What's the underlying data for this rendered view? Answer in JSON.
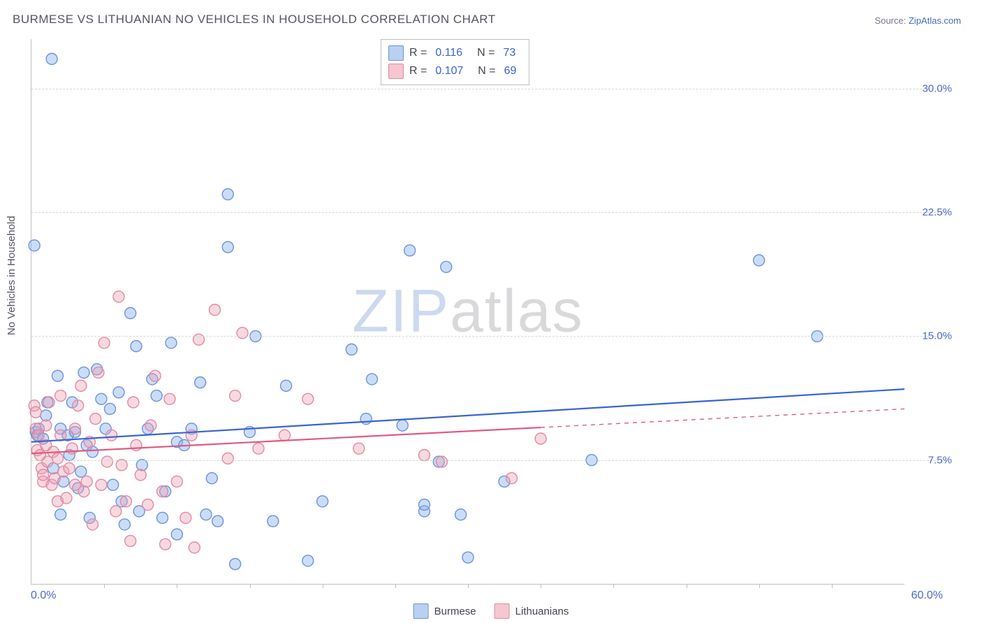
{
  "title": "BURMESE VS LITHUANIAN NO VEHICLES IN HOUSEHOLD CORRELATION CHART",
  "source_label": "Source:",
  "source_name": "ZipAtlas.com",
  "ylabel": "No Vehicles in Household",
  "watermark_a": "ZIP",
  "watermark_b": "atlas",
  "chart": {
    "type": "scatter",
    "background_color": "#ffffff",
    "grid_color": "#d8d8d8",
    "axis_color": "#bfbfbf",
    "tick_label_color": "#4a6ac8",
    "xlim": [
      0,
      60
    ],
    "ylim": [
      0,
      33
    ],
    "x_axis_label_min": "0.0%",
    "x_axis_label_max": "60.0%",
    "y_gridlines": [
      7.5,
      15.0,
      22.5,
      30.0
    ],
    "y_grid_labels": [
      "7.5%",
      "15.0%",
      "22.5%",
      "30.0%"
    ],
    "x_ticks": [
      5,
      10,
      15,
      20,
      25,
      30,
      35,
      40,
      45,
      50,
      55
    ],
    "marker_radius": 8,
    "marker_stroke_width": 1.4,
    "trend_line_width": 2.2,
    "label_fontsize": 15,
    "title_fontsize": 17
  },
  "stats": {
    "rows": [
      {
        "swatch_fill": "#b9d0f0",
        "swatch_stroke": "#6a94dc",
        "r": "0.116",
        "n": "73"
      },
      {
        "swatch_fill": "#f5c6d1",
        "swatch_stroke": "#e28ba2",
        "r": "0.107",
        "n": "69"
      }
    ],
    "r_prefix": "R  =",
    "n_prefix": "N  ="
  },
  "series_legend": [
    {
      "swatch_fill": "#b9d0f0",
      "swatch_stroke": "#6a94dc",
      "label": "Burmese"
    },
    {
      "swatch_fill": "#f5c6d1",
      "swatch_stroke": "#e28ba2",
      "label": "Lithuanians"
    }
  ],
  "series": [
    {
      "name": "Burmese",
      "color_fill": "rgba(140,180,235,0.45)",
      "color_stroke": "#6a94dc",
      "trend_color": "#3a64d6",
      "trend": {
        "x1": 0,
        "y1": 8.6,
        "x2": 60,
        "y2": 11.8,
        "solid_until_x": 60
      },
      "points": [
        [
          0.2,
          20.5
        ],
        [
          0.3,
          9.2
        ],
        [
          0.4,
          9.0
        ],
        [
          0.5,
          9.4
        ],
        [
          0.8,
          8.8
        ],
        [
          1.0,
          10.2
        ],
        [
          1.1,
          11.0
        ],
        [
          1.4,
          31.8
        ],
        [
          1.5,
          7.0
        ],
        [
          1.8,
          12.6
        ],
        [
          2.0,
          4.2
        ],
        [
          2.0,
          9.4
        ],
        [
          2.2,
          6.2
        ],
        [
          2.5,
          9.0
        ],
        [
          2.6,
          7.8
        ],
        [
          2.8,
          11.0
        ],
        [
          3.0,
          9.2
        ],
        [
          3.2,
          5.8
        ],
        [
          3.4,
          6.8
        ],
        [
          3.6,
          12.8
        ],
        [
          3.8,
          8.4
        ],
        [
          4.0,
          4.0
        ],
        [
          4.2,
          8.0
        ],
        [
          4.5,
          13.0
        ],
        [
          4.8,
          11.2
        ],
        [
          5.1,
          9.4
        ],
        [
          5.4,
          10.6
        ],
        [
          5.6,
          6.0
        ],
        [
          6.0,
          11.6
        ],
        [
          6.2,
          5.0
        ],
        [
          6.4,
          3.6
        ],
        [
          6.8,
          16.4
        ],
        [
          7.2,
          14.4
        ],
        [
          7.4,
          4.4
        ],
        [
          7.6,
          7.2
        ],
        [
          8.0,
          9.4
        ],
        [
          8.3,
          12.4
        ],
        [
          8.6,
          11.4
        ],
        [
          9.0,
          4.0
        ],
        [
          9.2,
          5.6
        ],
        [
          9.6,
          14.6
        ],
        [
          10.0,
          8.6
        ],
        [
          10.0,
          3.0
        ],
        [
          10.5,
          8.4
        ],
        [
          11.0,
          9.4
        ],
        [
          11.6,
          12.2
        ],
        [
          12.0,
          4.2
        ],
        [
          12.4,
          6.4
        ],
        [
          12.8,
          3.8
        ],
        [
          13.5,
          20.4
        ],
        [
          13.5,
          23.6
        ],
        [
          14.0,
          1.2
        ],
        [
          15.0,
          9.2
        ],
        [
          15.4,
          15.0
        ],
        [
          16.6,
          3.8
        ],
        [
          17.5,
          12.0
        ],
        [
          19.0,
          1.4
        ],
        [
          20.0,
          5.0
        ],
        [
          22.0,
          14.2
        ],
        [
          23.0,
          10.0
        ],
        [
          23.4,
          12.4
        ],
        [
          25.5,
          9.6
        ],
        [
          26.0,
          20.2
        ],
        [
          27.0,
          4.4
        ],
        [
          27.0,
          4.8
        ],
        [
          28.0,
          7.4
        ],
        [
          28.5,
          19.2
        ],
        [
          29.5,
          4.2
        ],
        [
          30.0,
          1.6
        ],
        [
          32.5,
          6.2
        ],
        [
          38.5,
          7.5
        ],
        [
          50.0,
          19.6
        ],
        [
          54.0,
          15.0
        ]
      ]
    },
    {
      "name": "Lithuanians",
      "color_fill": "rgba(235,160,180,0.40)",
      "color_stroke": "#e28ba2",
      "trend_color": "#e05a82",
      "trend": {
        "x1": 0,
        "y1": 7.9,
        "x2": 60,
        "y2": 10.6,
        "solid_until_x": 35
      },
      "points": [
        [
          0.2,
          10.8
        ],
        [
          0.3,
          10.4
        ],
        [
          0.3,
          9.4
        ],
        [
          0.4,
          8.1
        ],
        [
          0.5,
          9.0
        ],
        [
          0.6,
          7.8
        ],
        [
          0.7,
          7.0
        ],
        [
          0.8,
          6.2
        ],
        [
          0.8,
          6.6
        ],
        [
          1.0,
          8.4
        ],
        [
          1.0,
          9.6
        ],
        [
          1.1,
          7.4
        ],
        [
          1.2,
          11.0
        ],
        [
          1.4,
          6.0
        ],
        [
          1.5,
          8.0
        ],
        [
          1.6,
          6.4
        ],
        [
          1.8,
          5.0
        ],
        [
          1.8,
          7.6
        ],
        [
          2.0,
          9.0
        ],
        [
          2.0,
          11.4
        ],
        [
          2.2,
          6.8
        ],
        [
          2.4,
          5.2
        ],
        [
          2.6,
          7.0
        ],
        [
          2.8,
          8.2
        ],
        [
          3.0,
          9.4
        ],
        [
          3.0,
          6.0
        ],
        [
          3.2,
          10.8
        ],
        [
          3.4,
          12.0
        ],
        [
          3.6,
          5.6
        ],
        [
          3.8,
          6.2
        ],
        [
          4.0,
          8.6
        ],
        [
          4.2,
          3.6
        ],
        [
          4.4,
          10.0
        ],
        [
          4.6,
          12.8
        ],
        [
          4.8,
          6.0
        ],
        [
          5.0,
          14.6
        ],
        [
          5.2,
          7.4
        ],
        [
          5.5,
          9.0
        ],
        [
          5.8,
          4.4
        ],
        [
          6.0,
          17.4
        ],
        [
          6.2,
          7.2
        ],
        [
          6.5,
          5.0
        ],
        [
          6.8,
          2.6
        ],
        [
          7.0,
          11.0
        ],
        [
          7.2,
          8.4
        ],
        [
          7.5,
          6.6
        ],
        [
          8.0,
          4.8
        ],
        [
          8.2,
          9.6
        ],
        [
          8.5,
          12.6
        ],
        [
          9.0,
          5.6
        ],
        [
          9.2,
          2.4
        ],
        [
          9.5,
          11.2
        ],
        [
          10.0,
          6.2
        ],
        [
          10.6,
          4.0
        ],
        [
          11.0,
          9.0
        ],
        [
          11.2,
          2.2
        ],
        [
          11.5,
          14.8
        ],
        [
          12.6,
          16.6
        ],
        [
          13.5,
          7.6
        ],
        [
          14.0,
          11.4
        ],
        [
          14.5,
          15.2
        ],
        [
          15.6,
          8.2
        ],
        [
          17.4,
          9.0
        ],
        [
          19.0,
          11.2
        ],
        [
          22.5,
          8.2
        ],
        [
          27.0,
          7.8
        ],
        [
          28.2,
          7.4
        ],
        [
          33.0,
          6.4
        ],
        [
          35.0,
          8.8
        ]
      ]
    }
  ]
}
